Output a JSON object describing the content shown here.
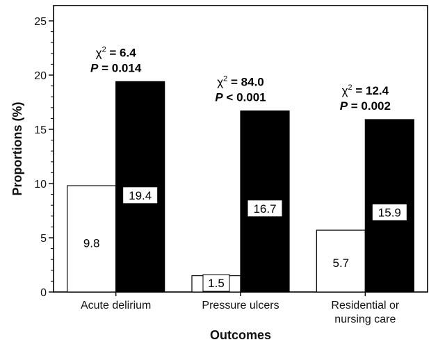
{
  "chart_data": {
    "type": "bar",
    "xlabel": "Outcomes",
    "ylabel": "Proportions (%)",
    "ylim": [
      0,
      25
    ],
    "y_ticks": [
      "0",
      "5",
      "10",
      "15",
      "20",
      "25"
    ],
    "grid": false,
    "categories": [
      {
        "lines": [
          "Acute delirium"
        ]
      },
      {
        "lines": [
          "Pressure ulcers"
        ]
      },
      {
        "lines": [
          "Residential or",
          "nursing care"
        ]
      }
    ],
    "series": [
      {
        "fill": "#ffffff",
        "values": [
          9.8,
          1.5,
          5.7
        ],
        "labels": [
          "9.8",
          "1.5",
          "5.7"
        ]
      },
      {
        "fill": "#000000",
        "values": [
          19.4,
          16.7,
          15.9
        ],
        "labels": [
          "19.4",
          "16.7",
          "15.9"
        ]
      }
    ],
    "annotations": [
      {
        "chi_symbol": "χ",
        "sup": "2",
        "chi_value": " = 6.4",
        "p_symbol": "P",
        "p_rest": " = 0.014"
      },
      {
        "chi_symbol": "χ",
        "sup": "2",
        "chi_value": " = 84.0",
        "p_symbol": "P",
        "p_rest": " < 0.001"
      },
      {
        "chi_symbol": "χ",
        "sup": "2",
        "chi_value": " = 12.4",
        "p_symbol": "P",
        "p_rest": " = 0.002"
      }
    ]
  }
}
